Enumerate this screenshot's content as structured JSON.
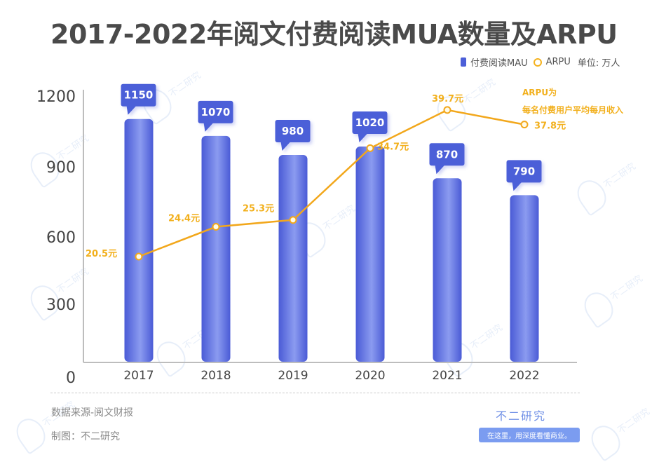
{
  "header": {
    "title": "2017-2022年阅文付费阅读MUA数量及ARPU"
  },
  "legend": {
    "bar_series": "付费阅读MAU",
    "line_series": "ARPU",
    "unit": "单位: 万人"
  },
  "note": {
    "line1": "ARPU为",
    "line2": "每名付费用户平均每月收入"
  },
  "colors": {
    "bar": "#4c5fd8",
    "bar_highlight": "#8b9bf0",
    "line": "#f2a71b",
    "label_accent": "#f2b01d",
    "title": "#4a4a4a"
  },
  "chart_data": {
    "type": "bar",
    "title": "2017-2022年阅文付费阅读MUA数量及ARPU",
    "xlabel": "",
    "ylabel": "",
    "categories": [
      "2017",
      "2018",
      "2019",
      "2020",
      "2021",
      "2022"
    ],
    "yticks": [
      "1200",
      "900",
      "600",
      "300",
      "0"
    ],
    "ylim": [
      0,
      1200
    ],
    "grid": false,
    "legend_position": "top-right",
    "series": [
      {
        "name": "付费阅读MAU",
        "type": "bar",
        "unit": "万人",
        "values": [
          1150,
          1070,
          980,
          1020,
          870,
          790
        ],
        "labels": [
          "1150",
          "1070",
          "980",
          "1020",
          "870",
          "790"
        ]
      },
      {
        "name": "ARPU",
        "type": "line",
        "unit": "元",
        "values": [
          20.5,
          24.4,
          25.3,
          34.7,
          39.7,
          37.8
        ],
        "labels": [
          "20.5元",
          "24.4元",
          "25.3元",
          "34.7元",
          "39.7元",
          "37.8元"
        ]
      }
    ]
  },
  "footer": {
    "source": "数据来源-阅文财报",
    "credit": "制图：不二研究",
    "brand_name": "不二研究",
    "brand_slogan": "在这里，用深度看懂商业。"
  },
  "watermark": "不二研究"
}
